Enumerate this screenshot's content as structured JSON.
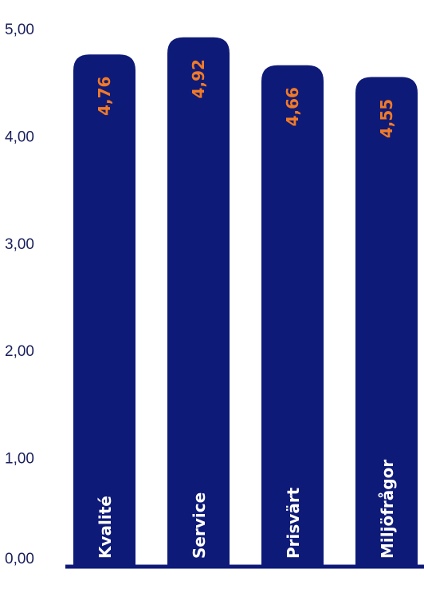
{
  "chart_data": {
    "type": "bar",
    "categories": [
      "Kvalité",
      "Service",
      "Prisvärt",
      "Miljöfrågor"
    ],
    "values": [
      4.76,
      4.92,
      4.66,
      4.55
    ],
    "value_labels": [
      "4,76",
      "4,92",
      "4,66",
      "4,55"
    ],
    "yticks": [
      "0,00",
      "1,00",
      "2,00",
      "3,00",
      "4,00",
      "5,00"
    ],
    "ylim": [
      0,
      5
    ],
    "grid": false,
    "bar_color": "#0e1a78",
    "value_label_color": "#f07a28",
    "category_label_color": "#ffffff",
    "axis_text_color": "#1a1f5c"
  }
}
